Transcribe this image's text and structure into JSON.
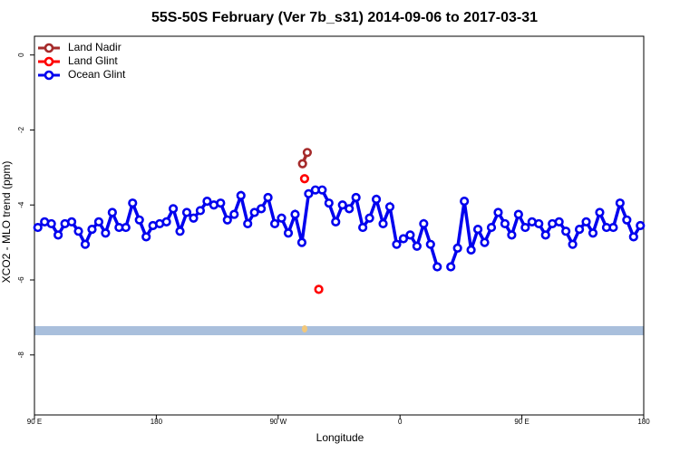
{
  "chart_data": {
    "type": "line",
    "title": "55S-50S February (Ver 7b_s31)   2014-09-06 to 2017-03-31",
    "xlabel": "Longitude",
    "ylabel": "XCO2 - MLO trend (ppm)",
    "xlim": [
      90,
      540
    ],
    "ylim": [
      -9.6,
      0.5
    ],
    "xticks": [
      {
        "value": 90,
        "label": "90 E"
      },
      180,
      {
        "value": 270,
        "label": "90 W"
      },
      {
        "value": 360,
        "label": "0"
      },
      {
        "value": 450,
        "label": "90 E"
      },
      {
        "value": 540,
        "label": "180"
      }
    ],
    "yticks": [
      0,
      -2,
      -4,
      -6,
      -8
    ],
    "legend": "top-left",
    "series": [
      {
        "name": "Land Nadir",
        "color": "#a52a2a",
        "x": [
          288,
          291.5
        ],
        "values": [
          -2.9,
          -2.6
        ]
      },
      {
        "name": "Land Glint",
        "color": "#ff0000",
        "x": [
          289.5,
          300
        ],
        "values": [
          -3.3,
          -6.25
        ],
        "connect": false
      },
      {
        "name": "Ocean Glint",
        "color": "#0000ee",
        "x": [
          92.5,
          97.5,
          102.5,
          107.5,
          112.5,
          117.5,
          122.5,
          127.5,
          132.5,
          137.5,
          142.5,
          147.5,
          152.5,
          157.5,
          162.5,
          167.5,
          172.5,
          177.5,
          182.5,
          187.5,
          192.5,
          197.5,
          202.5,
          207.5,
          212.5,
          217.5,
          222.5,
          227.5,
          232.5,
          237.5,
          242.5,
          247.5,
          252.5,
          257.5,
          262.5,
          267.5,
          272.5,
          277.5,
          282.5,
          287.5,
          292.5,
          297.5,
          302.5,
          307.5,
          312.5,
          317.5,
          322.5,
          327.5,
          332.5,
          337.5,
          342.5,
          347.5,
          352.5,
          357.5,
          362.5,
          367.5,
          372.5,
          377.5,
          382.5,
          387.5,
          392.5,
          397.5,
          402.5,
          407.5,
          412.5,
          417.5,
          422.5,
          427.5,
          432.5,
          437.5,
          442.5,
          447.5,
          452.5,
          457.5,
          462.5,
          467.5,
          472.5,
          477.5,
          482.5,
          487.5,
          492.5,
          497.5,
          502.5,
          507.5,
          512.5,
          517.5,
          522.5,
          527.5,
          532.5,
          537.5
        ],
        "values": [
          -4.6,
          -4.45,
          -4.5,
          -4.8,
          -4.5,
          -4.45,
          -4.7,
          -5.05,
          -4.65,
          -4.45,
          -4.75,
          -4.2,
          -4.6,
          -4.6,
          -3.95,
          -4.4,
          -4.85,
          -4.55,
          -4.5,
          -4.45,
          -4.1,
          -4.7,
          -4.2,
          -4.35,
          -4.15,
          -3.9,
          -4.0,
          -3.95,
          -4.4,
          -4.25,
          -3.75,
          -4.5,
          -4.2,
          -4.1,
          -3.8,
          -4.5,
          -4.35,
          -4.75,
          -4.25,
          -5.0,
          -3.7,
          -3.6,
          -3.6,
          -3.95,
          -4.45,
          -4.0,
          -4.1,
          -3.8,
          -4.6,
          -4.35,
          -3.85,
          -4.5,
          -4.05,
          -5.05,
          -4.9,
          -4.8,
          -5.1,
          -4.5,
          -5.05,
          -5.65,
          null,
          -5.65,
          -5.15,
          -3.9,
          -5.2,
          -4.65,
          -5.0,
          -4.6,
          -4.2,
          -4.5,
          -4.8,
          -4.25,
          -4.6,
          -4.45,
          -4.5,
          -4.8,
          -4.5,
          -4.45,
          -4.7,
          -5.05,
          -4.65,
          -4.45,
          -4.75,
          -4.2,
          -4.6,
          -4.6,
          -3.95,
          -4.4,
          -4.85,
          -4.55
        ]
      }
    ]
  }
}
